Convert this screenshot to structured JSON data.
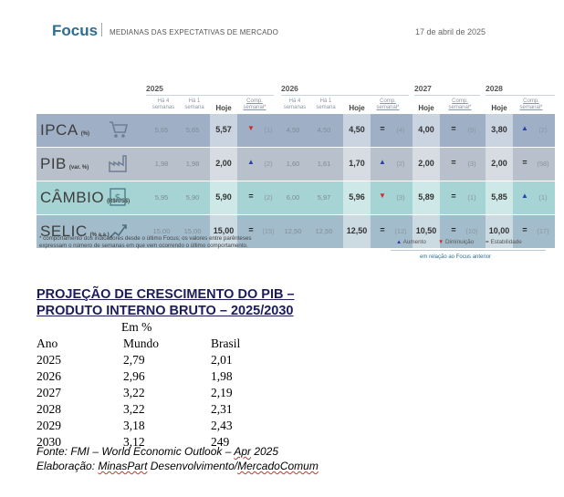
{
  "header": {
    "title": "Focus",
    "subtitle": "MEDIANAS DAS EXPECTATIVAS DE MERCADO",
    "date": "17 de abril de 2025"
  },
  "table": {
    "years": [
      "2025",
      "2026",
      "2027",
      "2028"
    ],
    "col_headers": {
      "ha4": "Há 4 semanas",
      "ha1": "Há 1 semana",
      "hoje": "Hoje",
      "comp": "Comp. semanal*"
    },
    "rows": [
      {
        "name": "IPCA",
        "unit": "(%)",
        "icon": "shopping-cart-icon",
        "y2025": {
          "ha4": "5,65",
          "ha1": "5,65",
          "hoje": "5,57",
          "sym": "▼",
          "cnt": "(1)"
        },
        "y2026": {
          "ha4": "4,50",
          "ha1": "4,50",
          "hoje": "4,50",
          "sym": "=",
          "cnt": "(4)"
        },
        "y2027": {
          "hoje": "4,00",
          "sym": "=",
          "cnt": "(9)"
        },
        "y2028": {
          "hoje": "3,80",
          "sym": "▲",
          "cnt": "(2)"
        }
      },
      {
        "name": "PIB",
        "unit": "(var. %)",
        "icon": "factory-icon",
        "y2025": {
          "ha4": "1,98",
          "ha1": "1,98",
          "hoje": "2,00",
          "sym": "▲",
          "cnt": "(2)"
        },
        "y2026": {
          "ha4": "1,60",
          "ha1": "1,61",
          "hoje": "1,70",
          "sym": "▲",
          "cnt": "(2)"
        },
        "y2027": {
          "hoje": "2,00",
          "sym": "=",
          "cnt": "(3)"
        },
        "y2028": {
          "hoje": "2,00",
          "sym": "=",
          "cnt": "(58)"
        }
      },
      {
        "name": "CÂMBIO",
        "unit": "(R$/US$)",
        "icon": "dollar-note-icon",
        "y2025": {
          "ha4": "5,95",
          "ha1": "5,90",
          "hoje": "5,90",
          "sym": "=",
          "cnt": "(2)"
        },
        "y2026": {
          "ha4": "6,00",
          "ha1": "5,97",
          "hoje": "5,96",
          "sym": "▼",
          "cnt": "(3)"
        },
        "y2027": {
          "hoje": "5,89",
          "sym": "=",
          "cnt": "(1)"
        },
        "y2028": {
          "hoje": "5,85",
          "sym": "▲",
          "cnt": "(1)"
        }
      },
      {
        "name": "SELIC",
        "unit": "(% a.a.)",
        "icon": "rising-chart-icon",
        "y2025": {
          "ha4": "15,00",
          "ha1": "15,00",
          "hoje": "15,00",
          "sym": "=",
          "cnt": "(15)"
        },
        "y2026": {
          "ha4": "12,50",
          "ha1": "12,50",
          "hoje": "12,50",
          "sym": "=",
          "cnt": "(12)"
        },
        "y2027": {
          "hoje": "10,50",
          "sym": "=",
          "cnt": "(10)"
        },
        "y2028": {
          "hoje": "10,00",
          "sym": "=",
          "cnt": "(17)"
        }
      }
    ],
    "footnote": "* comportamento dos indicadores desde o último Focus; os valores entre parênteses expressam o número de semanas em que vem ocorrendo o último comportamento.",
    "legend": {
      "up": "Aumento",
      "down": "Diminuição",
      "stable": "Estabilidade",
      "note": "em relação ao Focus anterior"
    },
    "colors": {
      "row_ipca": "#9fb0c6",
      "row_pib": "#b7c0cb",
      "row_cambio": "#a6d3d4",
      "row_selic": "#a3bccb",
      "up": "#2b3fa7",
      "down": "#d42a2a"
    }
  },
  "projection": {
    "title_line1": "PROJEÇÃO DE CRESCIMENTO DO PIB –",
    "title_line2": "PRODUTO INTERNO BRUTO – 2025/2030",
    "unit": "Em %",
    "columns": [
      "Ano",
      "Mundo",
      "Brasil"
    ],
    "rows": [
      [
        "2025",
        "2,79",
        "2,01"
      ],
      [
        "2026",
        "2,96",
        "1,98"
      ],
      [
        "2027",
        "3,22",
        "2,19"
      ],
      [
        "2028",
        "3,22",
        "2,31"
      ],
      [
        "2029",
        "3,18",
        "2,43"
      ],
      [
        "2030",
        "3,12",
        "249"
      ]
    ],
    "source_prefix": "Fonte: FMI – World Economic Outlook – ",
    "source_month": "Apr",
    "source_suffix": " 2025",
    "elab_prefix": "Elaboração: ",
    "elab_name1": "MinasPart",
    "elab_mid": " Desenvolvimento/",
    "elab_name2": "MercadoComum"
  }
}
